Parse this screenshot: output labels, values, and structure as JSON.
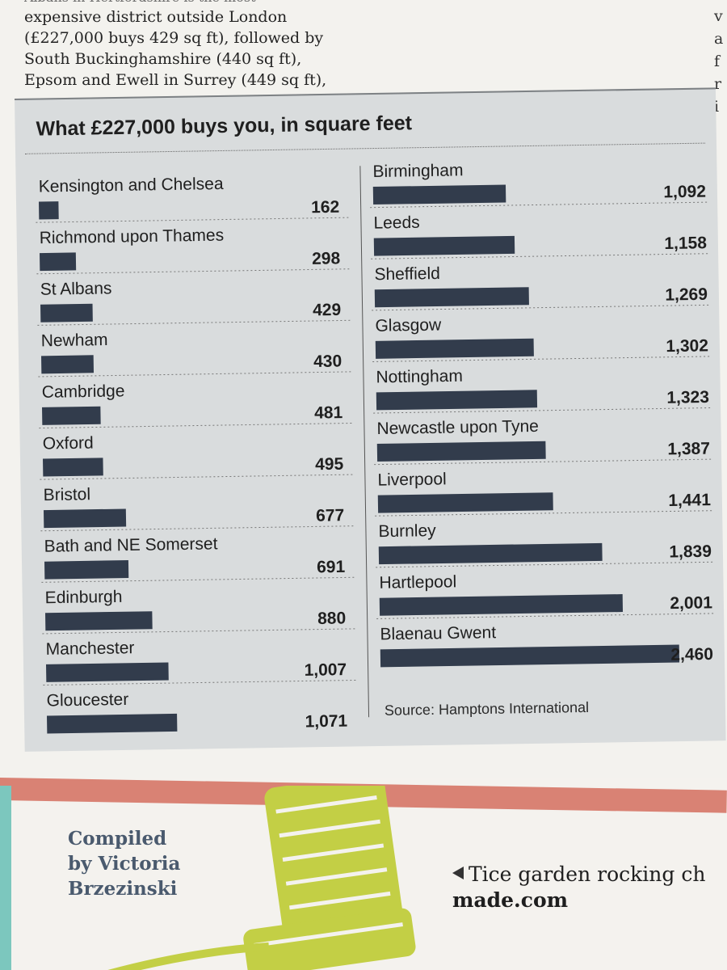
{
  "article": {
    "line0": "Albans in Hertfordshire is the most",
    "line1": "expensive district outside London",
    "line2": "(£227,000 buys 429 sq ft), followed by",
    "line3": "South Buckinghamshire (440 sq ft),",
    "line4": "Epsom and Ewell in Surrey (449 sq ft),"
  },
  "right_edge": {
    "c1": "v",
    "c2": "a",
    "c3": "f",
    "c4": "r",
    "c5": "i"
  },
  "chart_data": {
    "type": "bar",
    "title": "What £227,000 buys you, in square feet",
    "unit": "square feet",
    "source": "Source: Hamptons International",
    "left_column": [
      {
        "name": "Kensington and Chelsea",
        "value": 162,
        "label": "162"
      },
      {
        "name": "Richmond upon Thames",
        "value": 298,
        "label": "298"
      },
      {
        "name": "St Albans",
        "value": 429,
        "label": "429"
      },
      {
        "name": "Newham",
        "value": 430,
        "label": "430"
      },
      {
        "name": "Cambridge",
        "value": 481,
        "label": "481"
      },
      {
        "name": "Oxford",
        "value": 495,
        "label": "495"
      },
      {
        "name": "Bristol",
        "value": 677,
        "label": "677"
      },
      {
        "name": "Bath and NE Somerset",
        "value": 691,
        "label": "691"
      },
      {
        "name": "Edinburgh",
        "value": 880,
        "label": "880"
      },
      {
        "name": "Manchester",
        "value": 1007,
        "label": "1,007"
      },
      {
        "name": "Gloucester",
        "value": 1071,
        "label": "1,071"
      }
    ],
    "right_column": [
      {
        "name": "Birmingham",
        "value": 1092,
        "label": "1,092"
      },
      {
        "name": "Leeds",
        "value": 1158,
        "label": "1,158"
      },
      {
        "name": "Sheffield",
        "value": 1269,
        "label": "1,269"
      },
      {
        "name": "Glasgow",
        "value": 1302,
        "label": "1,302"
      },
      {
        "name": "Nottingham",
        "value": 1323,
        "label": "1,323"
      },
      {
        "name": "Newcastle upon Tyne",
        "value": 1387,
        "label": "1,387"
      },
      {
        "name": "Liverpool",
        "value": 1441,
        "label": "1,441"
      },
      {
        "name": "Burnley",
        "value": 1839,
        "label": "1,839"
      },
      {
        "name": "Hartlepool",
        "value": 2001,
        "label": "2,001"
      },
      {
        "name": "Blaenau Gwent",
        "value": 2460,
        "label": "2,460"
      }
    ],
    "max_value": 2460,
    "bar_color": "#323c4c"
  },
  "credit": {
    "line1": "Compiled",
    "line2": "by Victoria",
    "line3": "Brzezinski"
  },
  "product": {
    "text": "Tice garden rocking ch",
    "site": "made.com"
  },
  "colors": {
    "panel": "#d9dcdd",
    "band": "#d98274",
    "chair": "#c3cf45"
  }
}
